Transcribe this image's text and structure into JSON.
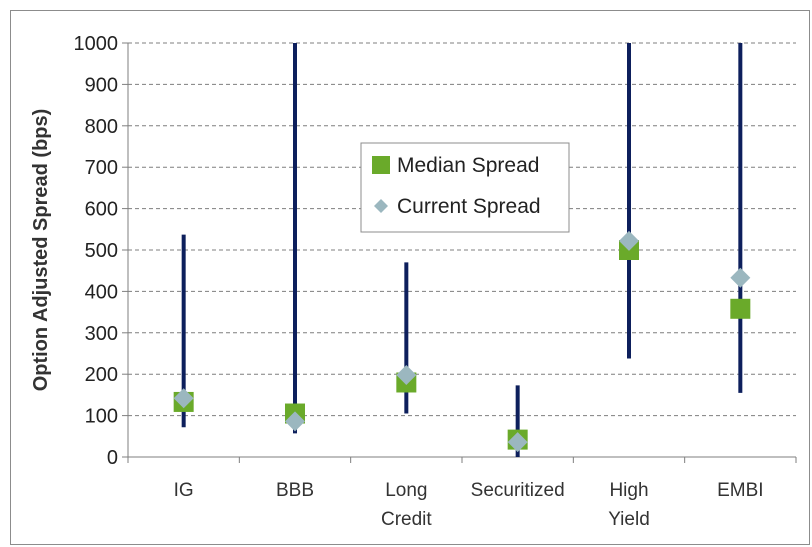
{
  "chart_data": {
    "type": "scatter",
    "ylabel": "Option Adjusted Spread (bps)",
    "ylim": [
      0,
      1000
    ],
    "yticks": [
      0,
      100,
      200,
      300,
      400,
      500,
      600,
      700,
      800,
      900,
      1000
    ],
    "grid": "horizontal-dashed",
    "legend_position": "center",
    "categories": [
      {
        "lines": [
          "IG"
        ]
      },
      {
        "lines": [
          "BBB"
        ]
      },
      {
        "lines": [
          "Long",
          "Credit"
        ]
      },
      {
        "lines": [
          "Securitized"
        ]
      },
      {
        "lines": [
          "High",
          "Yield"
        ]
      },
      {
        "lines": [
          "EMBI"
        ]
      }
    ],
    "ranges": [
      {
        "low": 72,
        "high": 537
      },
      {
        "low": 57,
        "high": 1000
      },
      {
        "low": 105,
        "high": 470
      },
      {
        "low": 0,
        "high": 173
      },
      {
        "low": 238,
        "high": 1000
      },
      {
        "low": 155,
        "high": 1000
      }
    ],
    "series": [
      {
        "name": "Median Spread",
        "marker": "square",
        "color": "#6aaa2a",
        "values": [
          133,
          105,
          180,
          42,
          500,
          358
        ]
      },
      {
        "name": "Current Spread",
        "marker": "diamond",
        "color": "#9bb7bf",
        "values": [
          142,
          86,
          198,
          36,
          522,
          433
        ]
      }
    ],
    "range_color": "#0d1f5c"
  }
}
